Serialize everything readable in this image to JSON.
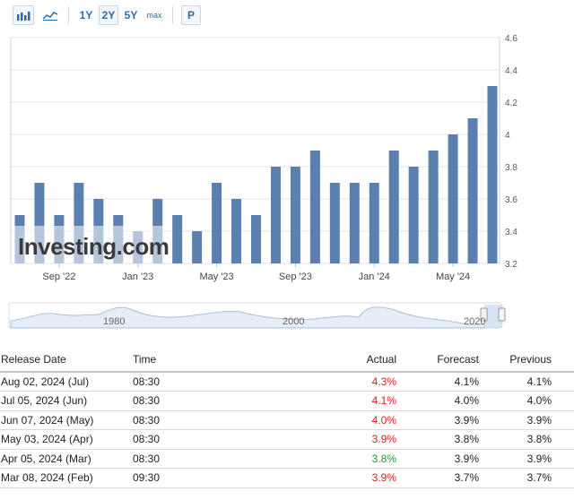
{
  "toolbar": {
    "range_buttons": [
      "1Y",
      "2Y",
      "5Y",
      "max"
    ],
    "selected_range": "2Y",
    "print_button": "P",
    "icons": [
      "bar-chart-icon",
      "line-chart-icon"
    ]
  },
  "chart_data": {
    "type": "bar",
    "categories": [
      "Jul '22",
      "Aug '22",
      "Sep '22",
      "Oct '22",
      "Nov '22",
      "Dec '22",
      "Jan '23",
      "Feb '23",
      "Mar '23",
      "Apr '23",
      "May '23",
      "Jun '23",
      "Jul '23",
      "Aug '23",
      "Sep '23",
      "Oct '23",
      "Nov '23",
      "Dec '23",
      "Jan '24",
      "Feb '24",
      "Mar '24",
      "Apr '24",
      "May '24",
      "Jun '24",
      "Jul '24"
    ],
    "values": [
      3.5,
      3.7,
      3.5,
      3.7,
      3.6,
      3.5,
      3.4,
      3.6,
      3.5,
      3.4,
      3.7,
      3.6,
      3.5,
      3.8,
      3.8,
      3.9,
      3.7,
      3.7,
      3.7,
      3.9,
      3.8,
      3.9,
      4.0,
      4.1,
      4.3
    ],
    "ylim": [
      3.2,
      4.6
    ],
    "yticks": [
      "3.2",
      "3.4",
      "3.6",
      "3.8",
      "4",
      "4.2",
      "4.4",
      "4.6"
    ],
    "xtick_labels": [
      {
        "index": 2,
        "label": "Sep '22"
      },
      {
        "index": 6,
        "label": "Jan '23"
      },
      {
        "index": 10,
        "label": "May '23"
      },
      {
        "index": 14,
        "label": "Sep '23"
      },
      {
        "index": 18,
        "label": "Jan '24"
      },
      {
        "index": 22,
        "label": "May '24"
      }
    ],
    "grid": true,
    "bar_color": "#5b80b0",
    "watermark": "Investing.com"
  },
  "navigator": {
    "labels": [
      "1980",
      "2000",
      "2020"
    ]
  },
  "table": {
    "headers": {
      "date": "Release Date",
      "time": "Time",
      "actual": "Actual",
      "forecast": "Forecast",
      "previous": "Previous"
    },
    "rows": [
      {
        "date": "Aug 02, 2024 (Jul)",
        "time": "08:30",
        "actual": "4.3%",
        "forecast": "4.1%",
        "previous": "4.1%",
        "status": "red"
      },
      {
        "date": "Jul 05, 2024 (Jun)",
        "time": "08:30",
        "actual": "4.1%",
        "forecast": "4.0%",
        "previous": "4.0%",
        "status": "red"
      },
      {
        "date": "Jun 07, 2024 (May)",
        "time": "08:30",
        "actual": "4.0%",
        "forecast": "3.9%",
        "previous": "3.9%",
        "status": "red"
      },
      {
        "date": "May 03, 2024 (Apr)",
        "time": "08:30",
        "actual": "3.9%",
        "forecast": "3.8%",
        "previous": "3.8%",
        "status": "red"
      },
      {
        "date": "Apr 05, 2024 (Mar)",
        "time": "08:30",
        "actual": "3.8%",
        "forecast": "3.9%",
        "previous": "3.9%",
        "status": "green"
      },
      {
        "date": "Mar 08, 2024 (Feb)",
        "time": "09:30",
        "actual": "3.9%",
        "forecast": "3.7%",
        "previous": "3.7%",
        "status": "red"
      }
    ]
  }
}
